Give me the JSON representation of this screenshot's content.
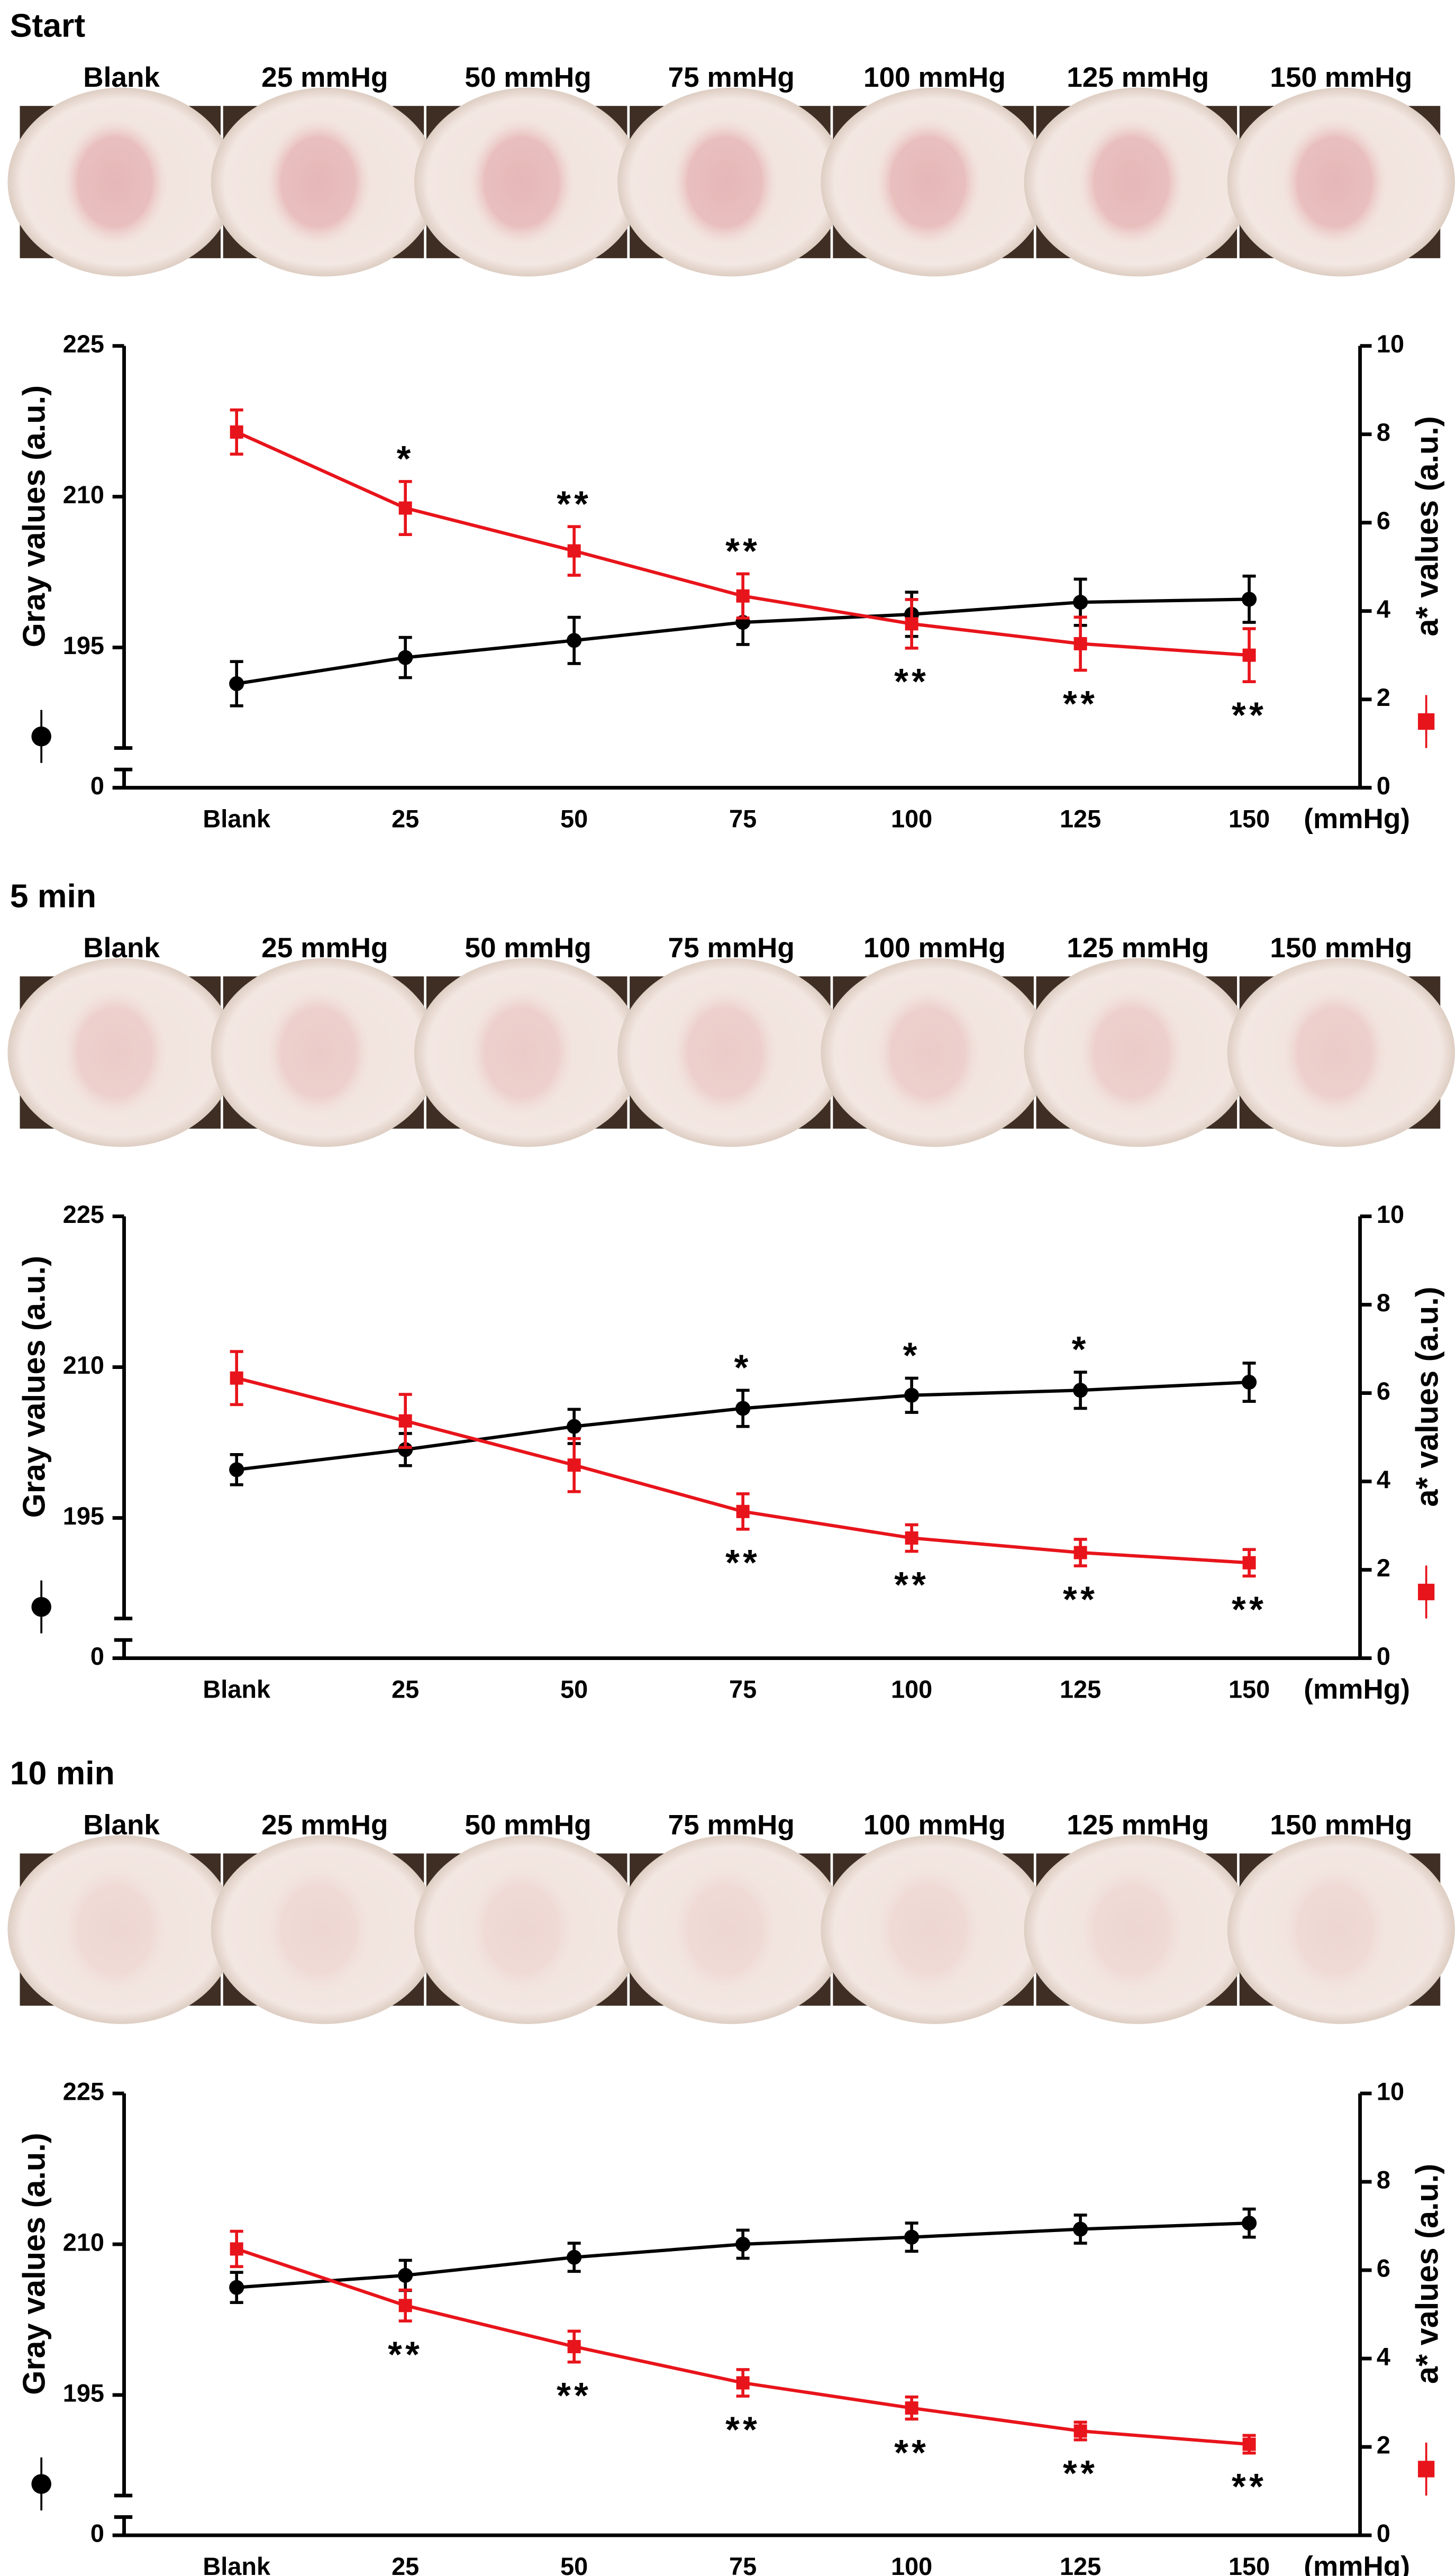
{
  "chart_data": [
    {
      "type": "line",
      "title": "Start",
      "photo_labels": [
        "Blank",
        "25 mmHg",
        "50 mmHg",
        "75 mmHg",
        "100 mmHg",
        "125 mmHg",
        "150 mmHg"
      ],
      "categories": [
        "Blank",
        "25",
        "50",
        "75",
        "100",
        "125",
        "150"
      ],
      "x_unit": "(mmHg)",
      "ylabel": "Gray values (a.u.)",
      "y2label": "a* values (a.u.)",
      "ylim": [
        0,
        225
      ],
      "ybreak": [
        2,
        185
      ],
      "yticks": [
        0,
        195,
        210,
        225
      ],
      "y2lim": [
        0,
        10
      ],
      "y2ticks": [
        0,
        2,
        4,
        6,
        8,
        10
      ],
      "series": [
        {
          "color": "#000000",
          "marker": "circle",
          "values": [
            191.4,
            194.0,
            195.7,
            197.5,
            198.3,
            199.5,
            199.8
          ],
          "errors": [
            2.2,
            2.0,
            2.3,
            2.2,
            2.2,
            2.3,
            2.3
          ]
        },
        {
          "color": "#e8141b",
          "marker": "square",
          "axis": "y2",
          "values": [
            8.05,
            6.33,
            5.36,
            4.34,
            3.71,
            3.26,
            3.0
          ],
          "errors": [
            0.5,
            0.6,
            0.55,
            0.5,
            0.55,
            0.6,
            0.6
          ],
          "significance": [
            null,
            "*",
            "**",
            "**",
            "**",
            "**",
            "**"
          ]
        }
      ]
    },
    {
      "type": "line",
      "title": "5 min",
      "photo_labels": [
        "Blank",
        "25 mmHg",
        "50 mmHg",
        "75 mmHg",
        "100 mmHg",
        "125 mmHg",
        "150 mmHg"
      ],
      "categories": [
        "Blank",
        "25",
        "50",
        "75",
        "100",
        "125",
        "150"
      ],
      "x_unit": "(mmHg)",
      "ylabel": "Gray values (a.u.)",
      "y2label": "a* values (a.u.)",
      "ylim": [
        0,
        225
      ],
      "ybreak": [
        2,
        185
      ],
      "yticks": [
        0,
        195,
        210,
        225
      ],
      "y2lim": [
        0,
        10
      ],
      "y2ticks": [
        0,
        2,
        4,
        6,
        8,
        10
      ],
      "series": [
        {
          "color": "#000000",
          "marker": "circle",
          "values": [
            199.8,
            201.8,
            204.1,
            205.9,
            207.2,
            207.7,
            208.5
          ],
          "errors": [
            1.5,
            1.6,
            1.7,
            1.8,
            1.7,
            1.8,
            1.9
          ],
          "significance": [
            null,
            null,
            null,
            "*",
            "*",
            "*",
            null
          ]
        },
        {
          "color": "#e8141b",
          "marker": "square",
          "axis": "y2",
          "values": [
            6.34,
            5.37,
            4.37,
            3.32,
            2.72,
            2.39,
            2.16
          ],
          "errors": [
            0.6,
            0.6,
            0.6,
            0.4,
            0.3,
            0.3,
            0.3
          ],
          "significance": [
            null,
            null,
            null,
            "**",
            "**",
            "**",
            "**"
          ]
        }
      ]
    },
    {
      "type": "line",
      "title": "10 min",
      "photo_labels": [
        "Blank",
        "25 mmHg",
        "50 mmHg",
        "75 mmHg",
        "100 mmHg",
        "125 mmHg",
        "150 mmHg"
      ],
      "categories": [
        "Blank",
        "25",
        "50",
        "75",
        "100",
        "125",
        "150"
      ],
      "x_unit": "(mmHg)",
      "ylabel": "Gray values (a.u.)",
      "y2label": "a* values (a.u.)",
      "ylim": [
        0,
        225
      ],
      "ybreak": [
        2,
        185
      ],
      "yticks": [
        0,
        195,
        210,
        225
      ],
      "y2lim": [
        0,
        10
      ],
      "y2ticks": [
        0,
        2,
        4,
        6,
        8,
        10
      ],
      "series": [
        {
          "color": "#000000",
          "marker": "circle",
          "values": [
            205.7,
            206.9,
            208.7,
            210.0,
            210.7,
            211.5,
            212.1
          ],
          "errors": [
            1.5,
            1.5,
            1.4,
            1.4,
            1.4,
            1.4,
            1.4
          ]
        },
        {
          "color": "#e8141b",
          "marker": "square",
          "axis": "y2",
          "values": [
            6.48,
            5.2,
            4.27,
            3.45,
            2.88,
            2.36,
            2.06
          ],
          "errors": [
            0.4,
            0.35,
            0.35,
            0.3,
            0.25,
            0.2,
            0.2
          ],
          "significance": [
            null,
            "**",
            "**",
            "**",
            "**",
            "**",
            "**"
          ]
        }
      ]
    }
  ]
}
